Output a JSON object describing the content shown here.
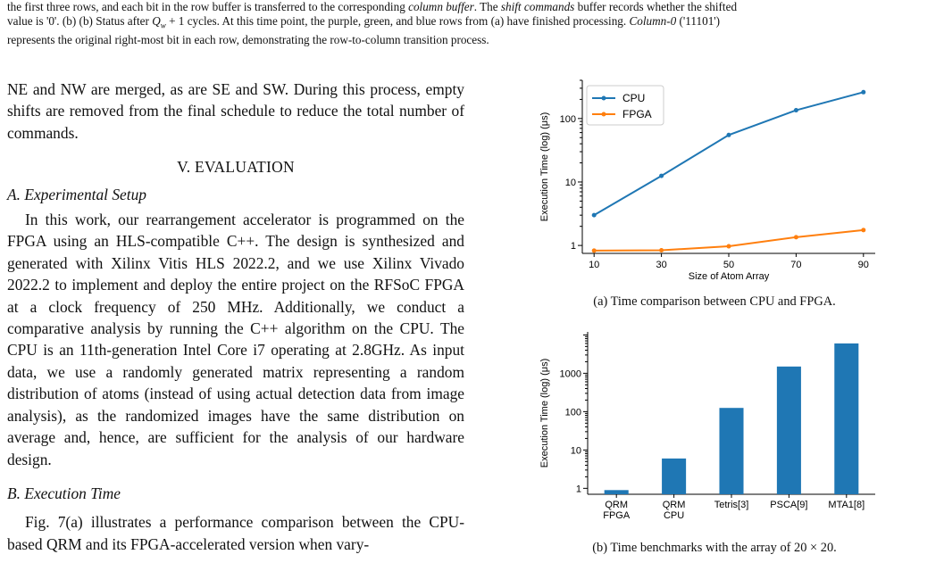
{
  "top_caption": {
    "line1": "the first three rows, and each bit in the row buffer is transferred to the corresponding column buffer. The shift commands buffer records whether the shifted",
    "line2": "value is '0'. (b) (b) Status after Q_w + 1 cycles. At this time point, the purple, green, and blue rows from (a) have finished processing. Column-0 ('11101')",
    "line3": "represents the original right-most bit in each row, demonstrating the row-to-column transition process."
  },
  "left_column": {
    "intro": "NE and NW are merged, as are SE and SW. During this process, empty shifts are removed from the final schedule to reduce the total number of commands.",
    "section_title": "V. EVALUATION",
    "subsection_a": "A. Experimental Setup",
    "para_setup": "In this work, our rearrangement accelerator is programmed on the FPGA using an HLS-compatible C++. The design is synthesized and generated with Xilinx Vitis HLS 2022.2, and we use Xilinx Vivado 2022.2 to implement and deploy the entire project on the RFSoC FPGA at a clock frequency of 250 MHz. Additionally, we conduct a comparative analysis by running the C++ algorithm on the CPU. The CPU is an 11th-generation Intel Core i7 operating at 2.8GHz. As input data, we use a randomly generated matrix representing a random distribution of atoms (instead of using actual detection data from image analysis), as the randomized images have the same distribution on average and, hence, are sufficient for the analysis of our hardware design.",
    "subsection_b": "B. Execution Time",
    "para_exec": "Fig. 7(a) illustrates a performance comparison between the CPU-based QRM and its FPGA-accelerated version when vary-"
  },
  "figure_a_caption": "(a) Time comparison between CPU and FPGA.",
  "figure_b_caption": "(b) Time benchmarks with the array of 20 × 20.",
  "chart_data": [
    {
      "type": "line",
      "xlabel": "Size of Atom Array",
      "ylabel": "Execution Time (log) (μs)",
      "y_scale": "log",
      "x": [
        10,
        30,
        50,
        70,
        90
      ],
      "x_ticks": [
        "10",
        "30",
        "50",
        "70",
        "90"
      ],
      "y_ticks": [
        "1",
        "10",
        "100"
      ],
      "ylim": [
        0.75,
        400
      ],
      "series": [
        {
          "name": "CPU",
          "values": [
            3.0,
            12.5,
            55,
            135,
            260
          ],
          "color": "#1f77b4"
        },
        {
          "name": "FPGA",
          "values": [
            0.83,
            0.84,
            0.97,
            1.35,
            1.75
          ],
          "color": "#ff7f0e"
        }
      ],
      "legend": "top-left"
    },
    {
      "type": "bar",
      "ylabel": "Execution Time (log) (μs)",
      "y_scale": "log",
      "categories": [
        "QRM FPGA",
        "QRM CPU",
        "Tetris[3]",
        "PSCA[9]",
        "MTA1[8]"
      ],
      "category_lines": [
        [
          "QRM",
          "FPGA"
        ],
        [
          "QRM",
          "CPU"
        ],
        [
          "Tetris[3]"
        ],
        [
          "PSCA[9]"
        ],
        [
          "MTA1[8]"
        ]
      ],
      "values": [
        0.9,
        6.0,
        125,
        1500,
        6000
      ],
      "y_ticks": [
        "1",
        "10",
        "100",
        "1000"
      ],
      "ylim": [
        0.7,
        12000
      ],
      "color": "#1f77b4"
    }
  ]
}
